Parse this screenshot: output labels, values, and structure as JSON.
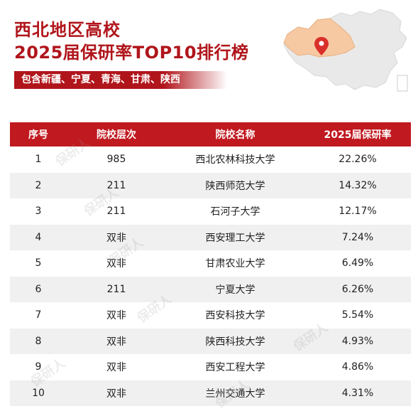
{
  "header": {
    "title_line1": "西北地区高校",
    "title_line2": "2025届保研率TOP10排行榜",
    "subtitle": "包含新疆、宁夏、青海、甘肃、陕西"
  },
  "watermark": "保研人",
  "table": {
    "columns": [
      "序号",
      "院校层次",
      "院校名称",
      "2025届保研率"
    ],
    "rows": [
      {
        "rank": "1",
        "level": "985",
        "name": "西北农林科技大学",
        "rate": "22.26%"
      },
      {
        "rank": "2",
        "level": "211",
        "name": "陕西师范大学",
        "rate": "14.32%"
      },
      {
        "rank": "3",
        "level": "211",
        "name": "石河子大学",
        "rate": "12.17%"
      },
      {
        "rank": "4",
        "level": "双非",
        "name": "西安理工大学",
        "rate": "7.24%"
      },
      {
        "rank": "5",
        "level": "双非",
        "name": "甘肃农业大学",
        "rate": "6.49%"
      },
      {
        "rank": "6",
        "level": "211",
        "name": "宁夏大学",
        "rate": "6.26%"
      },
      {
        "rank": "7",
        "level": "双非",
        "name": "西安科技大学",
        "rate": "5.54%"
      },
      {
        "rank": "8",
        "level": "双非",
        "name": "陕西科技大学",
        "rate": "4.93%"
      },
      {
        "rank": "9",
        "level": "双非",
        "name": "西安工程大学",
        "rate": "4.86%"
      },
      {
        "rank": "10",
        "level": "双非",
        "name": "兰州交通大学",
        "rate": "4.31%"
      }
    ]
  },
  "colors": {
    "brand_red": "#b0151b",
    "header_red": "#c0191f",
    "stripe_gray": "#f0f0f0",
    "map_highlight": "#f6c9a3"
  }
}
